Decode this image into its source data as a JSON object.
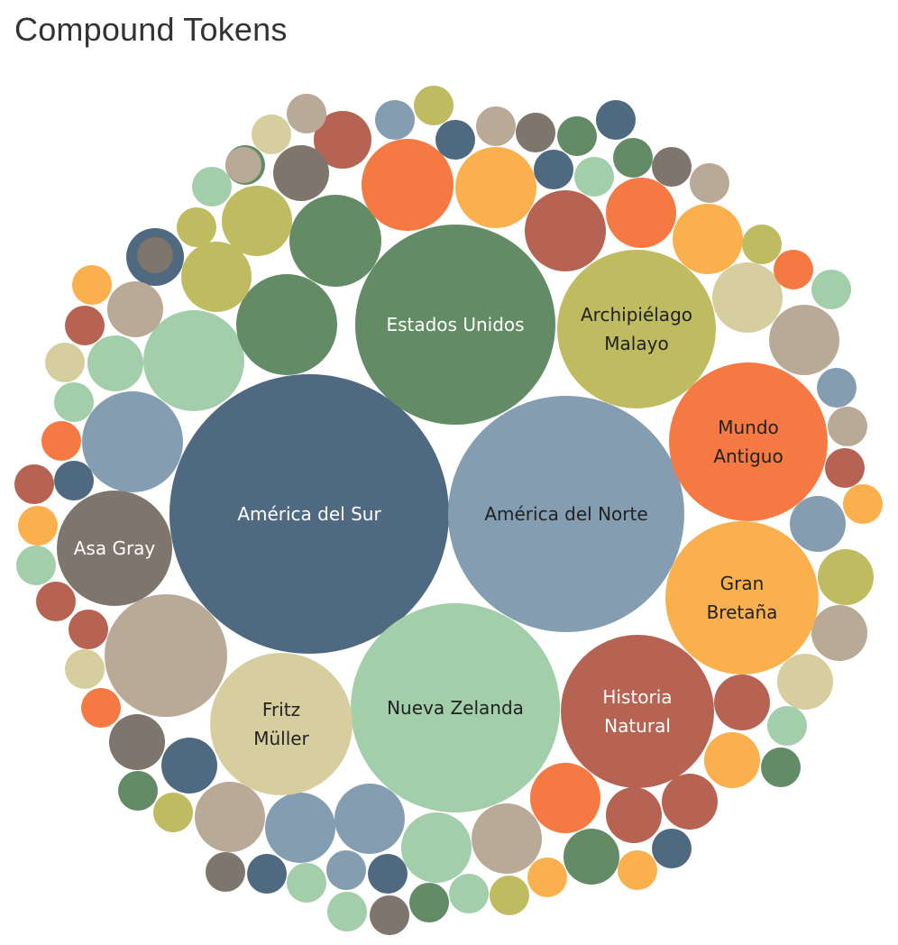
{
  "title": "Compound Tokens",
  "chart_data": {
    "type": "bubble",
    "title": "Compound Tokens",
    "palette": [
      "#4f6980",
      "#849db1",
      "#a2ceaa",
      "#638b66",
      "#bfbb60",
      "#f47942",
      "#fbb04e",
      "#b66353",
      "#d7ce9f",
      "#b9aa97",
      "#7e756d"
    ],
    "labeled": [
      {
        "label": [
          "América del Sur"
        ],
        "color": "#4f6980",
        "text_color": "#ffffff"
      },
      {
        "label": [
          "América del Norte"
        ],
        "color": "#849db1",
        "text_color": "#222222"
      },
      {
        "label": [
          "Nueva Zelanda"
        ],
        "color": "#a2ceaa",
        "text_color": "#222222"
      },
      {
        "label": [
          "Estados Unidos"
        ],
        "color": "#638b66",
        "text_color": "#ffffff"
      },
      {
        "label": [
          "Archipiélago",
          "Malayo"
        ],
        "color": "#bfbb60",
        "text_color": "#222222"
      },
      {
        "label": [
          "Mundo",
          "Antiguo"
        ],
        "color": "#f47942",
        "text_color": "#222222"
      },
      {
        "label": [
          "Gran",
          "Bretaña"
        ],
        "color": "#fbb04e",
        "text_color": "#222222"
      },
      {
        "label": [
          "Historia",
          "Natural"
        ],
        "color": "#b66353",
        "text_color": "#ffffff"
      },
      {
        "label": [
          "Fritz",
          "Müller"
        ],
        "color": "#d7ce9f",
        "text_color": "#222222"
      },
      {
        "label": [
          "Asa Gray"
        ],
        "color": "#7e756d",
        "text_color": "#ffffff"
      }
    ],
    "unlabeled_colors": [
      "#b9aa97",
      "#a2ceaa",
      "#849db1",
      "#638b66",
      "#638b66",
      "#bfbb60",
      "#bfbb60",
      "#f47942",
      "#fbb04e",
      "#b66353",
      "#b66353",
      "#f47942",
      "#fbb04e",
      "#d7ce9f",
      "#b9aa97",
      "#7e756d",
      "#4f6980",
      "#b9aa97",
      "#a2ceaa",
      "#a2ceaa",
      "#638b66",
      "#d7ce9f",
      "#b9aa97",
      "#849db1",
      "#bfbb60",
      "#4f6980",
      "#b9aa97",
      "#7e756d",
      "#638b66",
      "#4f6980",
      "#4f6980",
      "#a2ceaa",
      "#638b66",
      "#7e756d",
      "#b9aa97",
      "#bfbb60",
      "#f47942",
      "#a2ceaa",
      "#849db1",
      "#b9aa97",
      "#b66353",
      "#fbb04e",
      "#849db1",
      "#bfbb60",
      "#b9aa97",
      "#d7ce9f",
      "#a2ceaa",
      "#638b66",
      "#b66353",
      "#fbb04e",
      "#b66353",
      "#b66353",
      "#4f6980",
      "#fbb04e",
      "#638b66",
      "#f47942",
      "#b9aa97",
      "#fbb04e",
      "#bfbb60",
      "#a2ceaa",
      "#638b66",
      "#a2ceaa",
      "#849db1",
      "#4f6980",
      "#7e756d",
      "#a2ceaa",
      "#849db1",
      "#a2ceaa",
      "#4f6980",
      "#7e756d",
      "#b9aa97",
      "#849db1",
      "#4f6980",
      "#bfbb60",
      "#638b66",
      "#7e756d",
      "#f47942",
      "#d7ce9f",
      "#b66353",
      "#b66353",
      "#a2ceaa",
      "#fbb04e",
      "#b66353",
      "#4f6980",
      "#f47942",
      "#a2ceaa",
      "#d7ce9f",
      "#b66353",
      "#fbb04e",
      "#bfbb60",
      "#7e756d",
      "#4f6980",
      "#638b66",
      "#d7ce9f",
      "#b9aa97",
      "#b66353",
      "#4f6980",
      "#638b66",
      "#f47942",
      "#849db1",
      "#849db1",
      "#b9aa97",
      "#7e756d",
      "#4f6980",
      "#bfbb60",
      "#b9aa97",
      "#f47942"
    ]
  }
}
